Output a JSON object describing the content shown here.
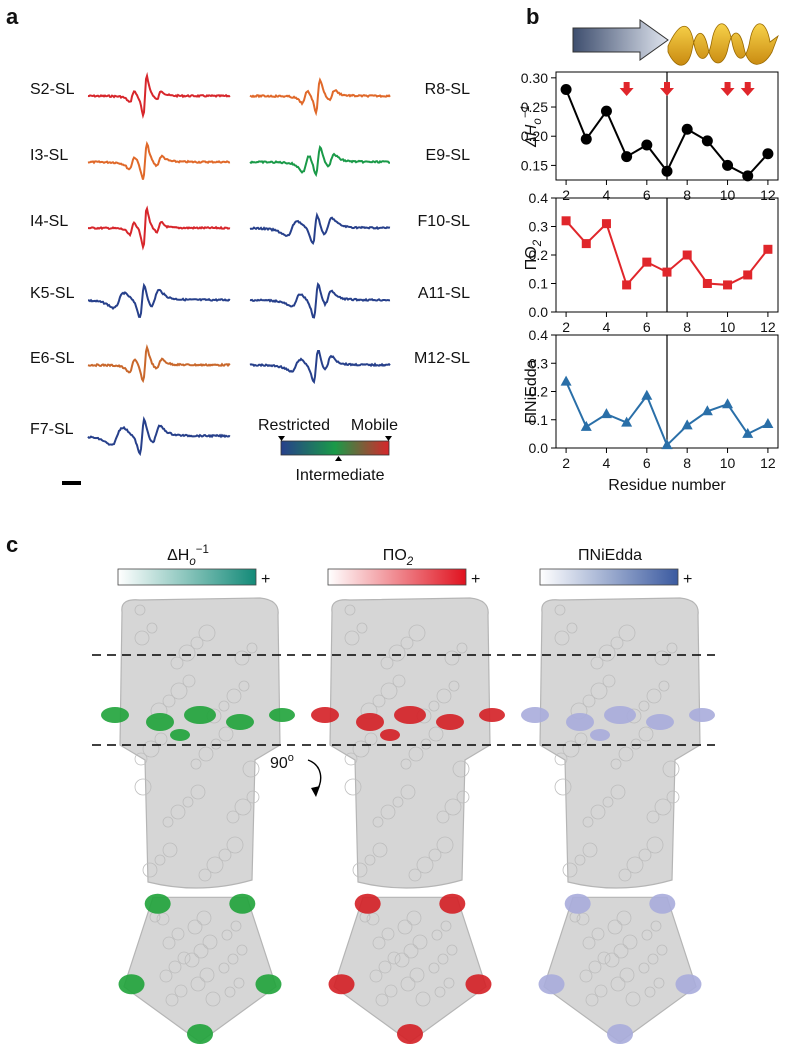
{
  "panels": [
    "a",
    "b",
    "c"
  ],
  "panel_a": {
    "spectra": [
      {
        "label": "S2-SL",
        "color": "#d7262b"
      },
      {
        "label": "I3-SL",
        "color": "#e0692a"
      },
      {
        "label": "I4-SL",
        "color": "#d7262b"
      },
      {
        "label": "K5-SL",
        "color": "#27408b"
      },
      {
        "label": "E6-SL",
        "color": "#c9682c"
      },
      {
        "label": "F7-SL",
        "color": "#27408b"
      },
      {
        "label": "R8-SL",
        "color": "#e0692a"
      },
      {
        "label": "E9-SL",
        "color": "#1a9a48"
      },
      {
        "label": "F10-SL",
        "color": "#27408b"
      },
      {
        "label": "A11-SL",
        "color": "#27408b"
      },
      {
        "label": "M12-SL",
        "color": "#27408b"
      }
    ],
    "legend": {
      "left": "Restricted",
      "right": "Mobile",
      "middle": "Intermediate",
      "colors": [
        "#27408b",
        "#1a9a48",
        "#d7262b"
      ]
    }
  },
  "chart_data": [
    {
      "type": "line",
      "ylabel": {
        "base": "ΔH",
        "sub": "o",
        "sup": "−1"
      },
      "x": [
        2,
        3,
        4,
        5,
        6,
        7,
        8,
        9,
        10,
        11,
        12
      ],
      "values": [
        0.28,
        0.195,
        0.243,
        0.165,
        0.185,
        0.14,
        0.212,
        0.192,
        0.15,
        0.132,
        0.17
      ],
      "color": "#000000",
      "marker": "circle",
      "xlim": [
        1.5,
        12.5
      ],
      "xticks": [
        2,
        4,
        6,
        8,
        10,
        12
      ],
      "ylim": [
        0.125,
        0.31
      ],
      "yticks": [
        0.15,
        {
          "value": 0.2,
          "label": "0.20"
        },
        0.25,
        {
          "value": 0.3,
          "label": "0.30"
        }
      ],
      "vline": 7,
      "arrows": [
        5,
        7,
        10,
        11
      ],
      "arrow_color": "#e0262b"
    },
    {
      "type": "line",
      "ylabel": {
        "base": "ΠO",
        "sub": "2"
      },
      "x": [
        2,
        3,
        4,
        5,
        6,
        7,
        8,
        9,
        10,
        11,
        12
      ],
      "values": [
        0.32,
        0.24,
        0.31,
        0.095,
        0.175,
        0.14,
        0.2,
        0.1,
        0.095,
        0.13,
        0.22
      ],
      "color": "#e0262b",
      "marker": "square",
      "xlim": [
        1.5,
        12.5
      ],
      "xticks": [
        2,
        4,
        6,
        8,
        10,
        12
      ],
      "ylim": [
        0,
        0.4
      ],
      "yticks": [
        {
          "value": 0,
          "label": "0.0"
        },
        0.1,
        0.2,
        0.3,
        0.4
      ],
      "vline": 7
    },
    {
      "type": "line",
      "ylabel": {
        "base": "ΠNiEdda"
      },
      "xlabel": "Residue number",
      "x": [
        2,
        3,
        4,
        5,
        6,
        7,
        8,
        9,
        10,
        11,
        12
      ],
      "values": [
        0.235,
        0.075,
        0.12,
        0.09,
        0.185,
        0.01,
        0.08,
        0.13,
        0.155,
        0.05,
        0.085
      ],
      "color": "#2a6fa8",
      "marker": "triangle",
      "xlim": [
        1.5,
        12.5
      ],
      "xticks": [
        2,
        4,
        6,
        8,
        10,
        12
      ],
      "ylim": [
        0,
        0.4
      ],
      "yticks": [
        {
          "value": 0,
          "label": "0.0"
        },
        0.1,
        0.2,
        0.3,
        0.4
      ],
      "vline": 7
    }
  ],
  "panel_c": {
    "maps": [
      {
        "title": {
          "base": "ΔH",
          "sub": "o",
          "sup": "−1"
        },
        "color": "#138a78",
        "patch": "#1fa33a"
      },
      {
        "title": {
          "base": "ΠO",
          "sub": "2"
        },
        "color": "#e0121f",
        "patch": "#d41f25"
      },
      {
        "title": {
          "base": "ΠNiEdda"
        },
        "color": "#3b5aa0",
        "patch": "#a9acdc"
      }
    ],
    "plus": "+",
    "rotation": {
      "base": "90",
      "sup": "o"
    }
  }
}
